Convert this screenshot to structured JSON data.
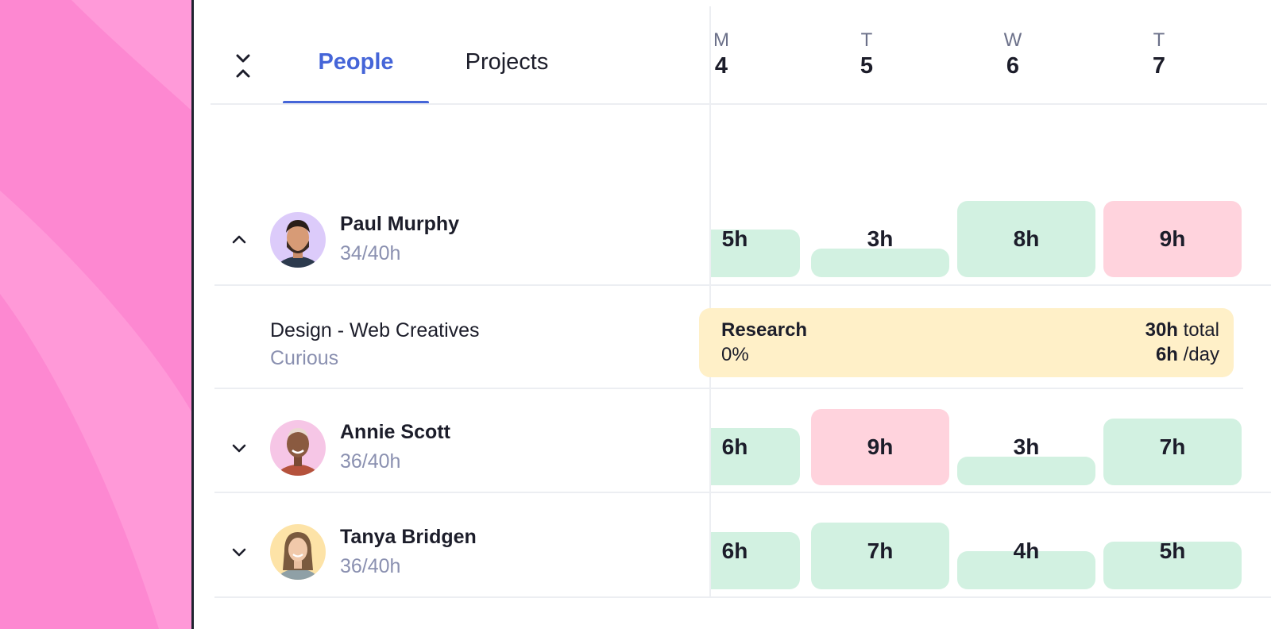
{
  "header": {
    "collapse_icon": "collapse-icon",
    "tabs": [
      {
        "label": "People",
        "active": true
      },
      {
        "label": "Projects",
        "active": false
      }
    ],
    "days": [
      {
        "letter": "M",
        "number": "4"
      },
      {
        "letter": "T",
        "number": "5"
      },
      {
        "letter": "W",
        "number": "6"
      },
      {
        "letter": "T",
        "number": "7"
      }
    ]
  },
  "people": [
    {
      "name": "Paul Murphy",
      "hours": "34/40h",
      "expanded": true,
      "toggle_icon": "chevron-up-icon",
      "days": [
        {
          "label": "5h",
          "hours": 5,
          "status": "ok"
        },
        {
          "label": "3h",
          "hours": 3,
          "status": "ok"
        },
        {
          "label": "8h",
          "hours": 8,
          "status": "ok"
        },
        {
          "label": "9h",
          "hours": 9,
          "status": "over"
        }
      ],
      "assignment": {
        "project": "Design - Web Creatives",
        "client": "Curious",
        "task": "Research",
        "progress": "0%",
        "total_value": "30h",
        "total_suffix": "total",
        "per_day_value": "6h",
        "per_day_suffix": "/day"
      }
    },
    {
      "name": "Annie Scott",
      "hours": "36/40h",
      "expanded": false,
      "toggle_icon": "chevron-down-icon",
      "days": [
        {
          "label": "6h",
          "hours": 6,
          "status": "ok"
        },
        {
          "label": "9h",
          "hours": 9,
          "status": "over"
        },
        {
          "label": "3h",
          "hours": 3,
          "status": "ok"
        },
        {
          "label": "7h",
          "hours": 7,
          "status": "ok"
        }
      ]
    },
    {
      "name": "Tanya Bridgen",
      "hours": "36/40h",
      "expanded": false,
      "toggle_icon": "chevron-down-icon",
      "days": [
        {
          "label": "6h",
          "hours": 6,
          "status": "ok"
        },
        {
          "label": "7h",
          "hours": 7,
          "status": "ok"
        },
        {
          "label": "4h",
          "hours": 4,
          "status": "ok"
        },
        {
          "label": "5h",
          "hours": 5,
          "status": "ok"
        }
      ]
    }
  ],
  "colors": {
    "accent": "#4565d8",
    "ok": "#d2f1e1",
    "over": "#ffd3dd",
    "assignment": "#fff0c8",
    "pink_background": "#fd88d1"
  }
}
